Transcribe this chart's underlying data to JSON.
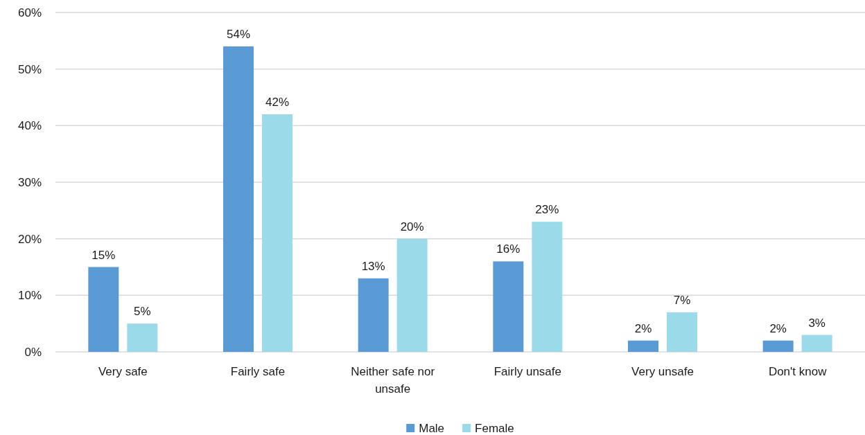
{
  "chart_data": {
    "type": "bar",
    "categories": [
      "Very safe",
      "Fairly safe",
      "Neither safe nor unsafe",
      "Fairly unsafe",
      "Very unsafe",
      "Don't know"
    ],
    "series": [
      {
        "name": "Male",
        "color": "#5b9bd5",
        "values": [
          15,
          54,
          13,
          16,
          2,
          2
        ],
        "value_labels": [
          "15%",
          "54%",
          "13%",
          "16%",
          "2%",
          "2%"
        ]
      },
      {
        "name": "Female",
        "color": "#9bdbe9",
        "values": [
          5,
          42,
          20,
          23,
          7,
          3
        ],
        "value_labels": [
          "5%",
          "42%",
          "20%",
          "23%",
          "7%",
          "3%"
        ]
      }
    ],
    "ylim": [
      0,
      60
    ],
    "yticks": [
      {
        "value": 0,
        "label": "0%"
      },
      {
        "value": 10,
        "label": "10%"
      },
      {
        "value": 20,
        "label": "20%"
      },
      {
        "value": 30,
        "label": "30%"
      },
      {
        "value": 40,
        "label": "40%"
      },
      {
        "value": 50,
        "label": "50%"
      },
      {
        "value": 60,
        "label": "60%"
      }
    ],
    "grid": "y",
    "legend": "bottom"
  }
}
